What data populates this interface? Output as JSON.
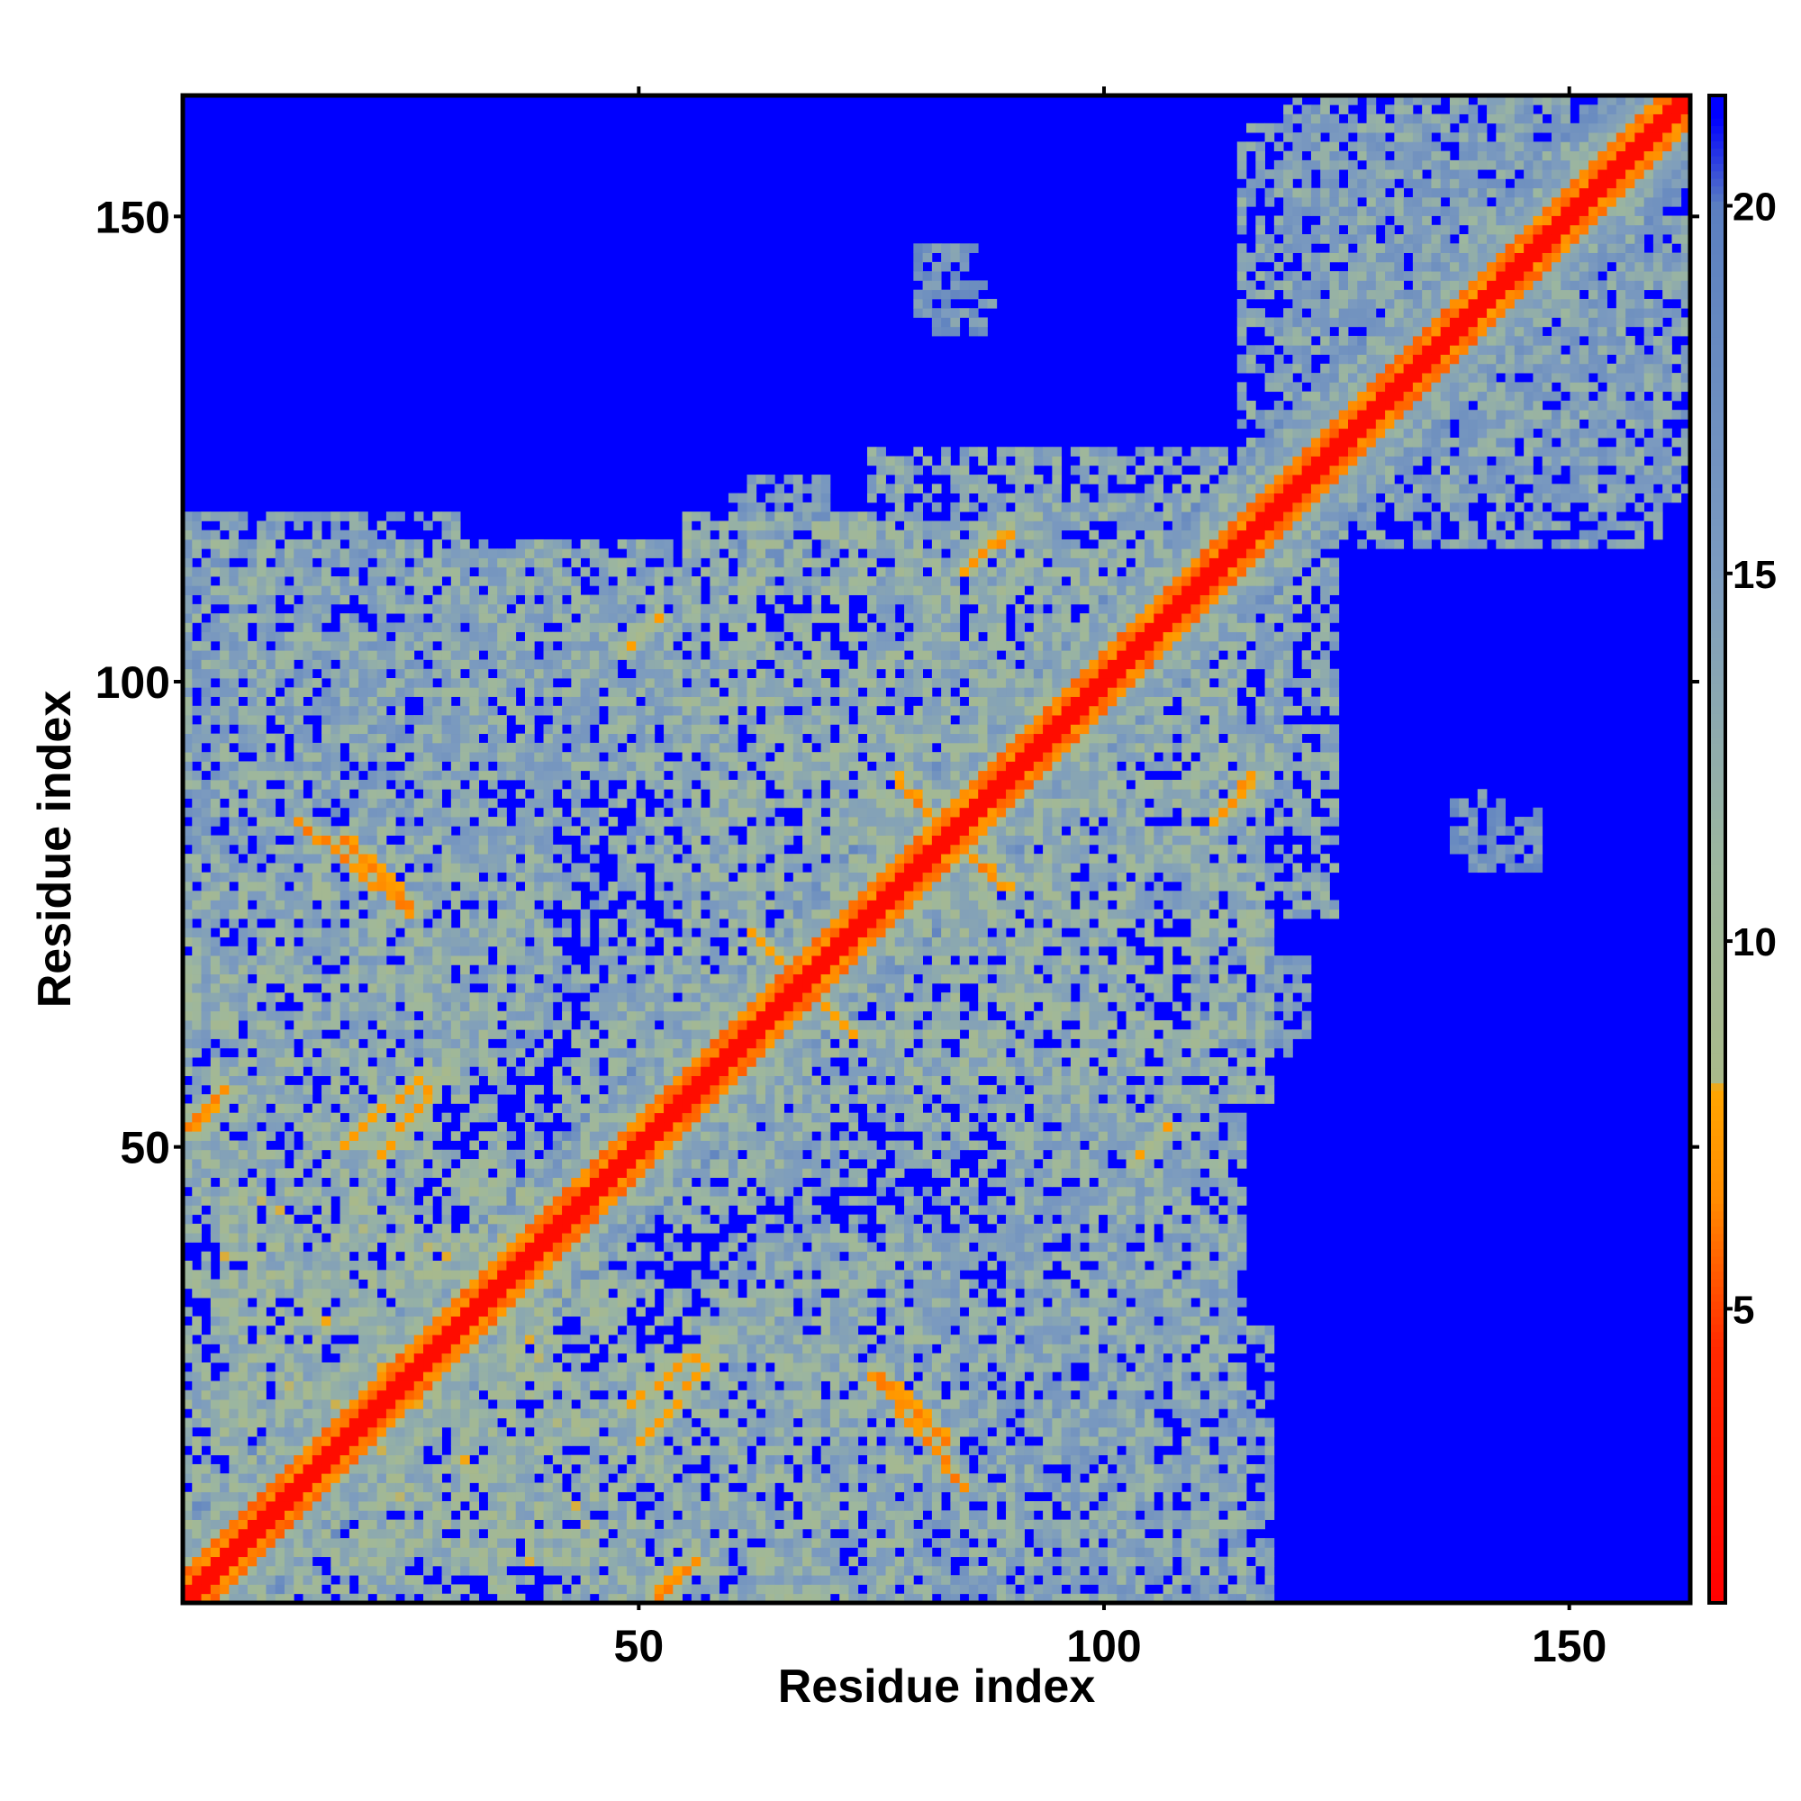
{
  "chart_data": {
    "type": "heatmap",
    "title": "",
    "xlabel": "Residue index",
    "ylabel": "Residue index",
    "n_residues": 163,
    "xlim": [
      1,
      163
    ],
    "ylim": [
      1,
      163
    ],
    "x_ticks": [
      50,
      100,
      150
    ],
    "y_ticks": [
      50,
      100,
      150
    ],
    "colorbar": {
      "range": [
        1.0,
        21.5
      ],
      "ticks": [
        5,
        10,
        15,
        20
      ],
      "legend_position": "right",
      "stops": [
        {
          "value": 1.0,
          "color": "#ff0000"
        },
        {
          "value": 4.5,
          "color": "#ff2a00"
        },
        {
          "value": 6.5,
          "color": "#ff8c00"
        },
        {
          "value": 8.0,
          "color": "#ffa500"
        },
        {
          "value": 8.1,
          "color": "#a9b98a"
        },
        {
          "value": 11.0,
          "color": "#9db79e"
        },
        {
          "value": 15.0,
          "color": "#7c9bbf"
        },
        {
          "value": 20.0,
          "color": "#5b7fc0"
        },
        {
          "value": 21.2,
          "color": "#0000ff"
        }
      ]
    },
    "background_value": 21.5,
    "diagonal": {
      "core_value": 2.0,
      "near_value": 6.5,
      "band_half_width_residues": 3
    },
    "contact_regions": [
      {
        "x": [
          1,
          25
        ],
        "y": [
          1,
          60
        ],
        "value": 12
      },
      {
        "x": [
          15,
          45
        ],
        "y": [
          5,
          40
        ],
        "value": 11
      },
      {
        "x": [
          40,
          80
        ],
        "y": [
          1,
          35
        ],
        "value": 12
      },
      {
        "x": [
          45,
          85
        ],
        "y": [
          10,
          70
        ],
        "value": 13
      },
      {
        "x": [
          80,
          118
        ],
        "y": [
          1,
          30
        ],
        "value": 14
      },
      {
        "x": [
          90,
          115
        ],
        "y": [
          30,
          60
        ],
        "value": 13
      },
      {
        "x": [
          1,
          40
        ],
        "y": [
          60,
          115
        ],
        "value": 13
      },
      {
        "x": [
          30,
          60
        ],
        "y": [
          85,
          112
        ],
        "value": 13
      },
      {
        "x": [
          55,
          100
        ],
        "y": [
          60,
          118
        ],
        "value": 12
      },
      {
        "x": [
          85,
          125
        ],
        "y": [
          75,
          120
        ],
        "value": 13
      },
      {
        "x": [
          110,
          122
        ],
        "y": [
          60,
          70
        ],
        "value": 15
      },
      {
        "x": [
          120,
          160
        ],
        "y": [
          115,
          163
        ],
        "value": 14
      },
      {
        "x": [
          80,
          86
        ],
        "y": [
          140,
          147
        ],
        "value": 16
      },
      {
        "x": [
          138,
          143
        ],
        "y": [
          82,
          88
        ],
        "value": 16
      }
    ],
    "contact_lines": [
      {
        "from": [
          13,
          85
        ],
        "to": [
          25,
          75
        ],
        "value": 6
      },
      {
        "from": [
          21,
          48
        ],
        "to": [
          29,
          58
        ],
        "value": 7
      },
      {
        "from": [
          1,
          52
        ],
        "to": [
          5,
          56
        ],
        "value": 6
      },
      {
        "from": [
          76,
          25
        ],
        "to": [
          83,
          18
        ],
        "value": 6
      },
      {
        "from": [
          50,
          18
        ],
        "to": [
          58,
          27
        ],
        "value": 7
      },
      {
        "from": [
          52,
          2
        ],
        "to": [
          56,
          5
        ],
        "value": 7
      },
      {
        "from": [
          79,
          88
        ],
        "to": [
          89,
          78
        ],
        "value": 6
      },
      {
        "from": [
          63,
          72
        ],
        "to": [
          73,
          62
        ],
        "value": 7
      },
      {
        "from": [
          85,
          112
        ],
        "to": [
          88,
          115
        ],
        "value": 7
      },
      {
        "from": [
          113,
          86
        ],
        "to": [
          116,
          90
        ],
        "value": 6
      },
      {
        "from": [
          103,
          48
        ],
        "to": [
          107,
          52
        ],
        "value": 7
      }
    ]
  }
}
